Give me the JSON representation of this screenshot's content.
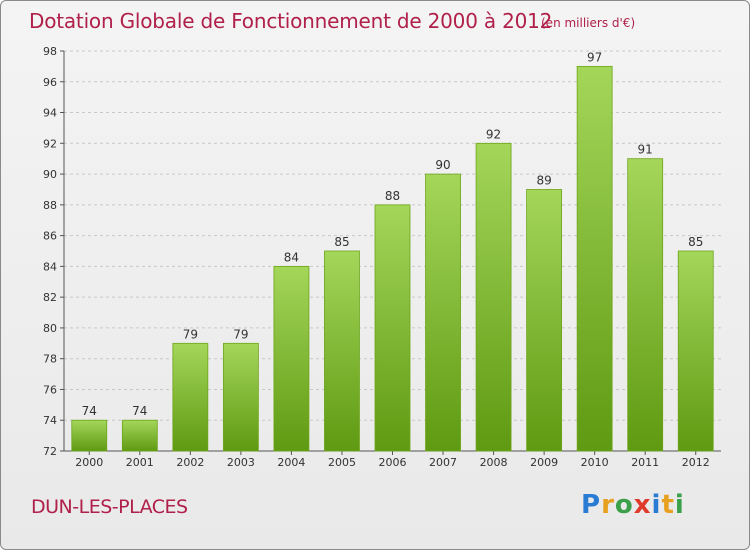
{
  "colors": {
    "title": "#b0204a",
    "bar_top": "#a4d65a",
    "bar_bottom": "#5f9a12",
    "bar_edge": "#6da51b",
    "grid": "#c8c8c8"
  },
  "footer": {
    "place": "DUN-LES-PLACES"
  },
  "logo": {
    "text": "Proxiti",
    "letters": [
      "P",
      "r",
      "o",
      "x",
      "i",
      "t",
      "i"
    ],
    "colors": [
      "#2a7bd4",
      "#e8a020",
      "#3aa04a",
      "#e03a2a",
      "#2a7bd4",
      "#e8a020",
      "#3aa04a"
    ]
  },
  "chart_data": {
    "type": "bar",
    "title": "Dotation Globale de Fonctionnement de 2000 à 2012",
    "subtitle": "(en milliers d'€)",
    "categories": [
      "2000",
      "2001",
      "2002",
      "2003",
      "2004",
      "2005",
      "2006",
      "2007",
      "2008",
      "2009",
      "2010",
      "2011",
      "2012"
    ],
    "values": [
      74,
      74,
      79,
      79,
      84,
      85,
      88,
      90,
      92,
      89,
      97,
      91,
      85
    ],
    "ylim": [
      72,
      98
    ],
    "yticks": [
      72,
      74,
      76,
      78,
      80,
      82,
      84,
      86,
      88,
      90,
      92,
      94,
      96,
      98
    ],
    "grid": "horizontal-dashed",
    "legend": "none"
  }
}
